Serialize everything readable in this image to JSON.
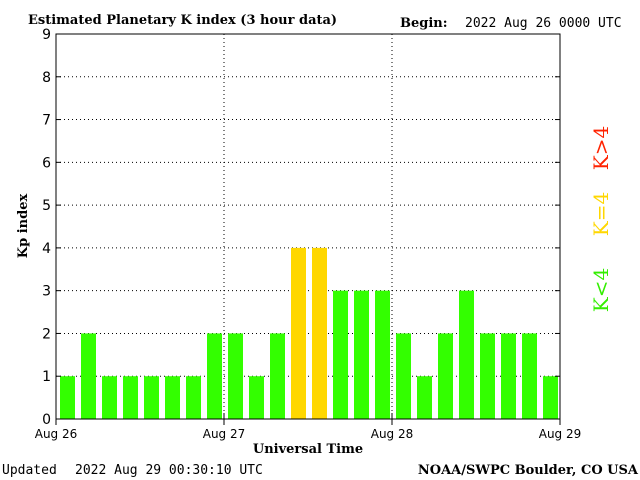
{
  "header": {
    "title": "Estimated Planetary K index (3 hour data)",
    "begin_label": "Begin:",
    "begin_value": "2022 Aug 26 0000 UTC"
  },
  "footer": {
    "updated_label": "Updated",
    "updated_value": "2022 Aug 29 00:30:10 UTC",
    "source": "NOAA/SWPC Boulder, CO USA"
  },
  "legend": {
    "items": [
      {
        "text": "K<4",
        "color": "#33ee00"
      },
      {
        "text": "K=4",
        "color": "#ffd700"
      },
      {
        "text": "K>4",
        "color": "#ff2200"
      }
    ]
  },
  "colors": {
    "below4": "#33ff00",
    "equal4": "#ffd700",
    "above4": "#ff2200"
  },
  "chart_data": {
    "type": "bar",
    "title": "Estimated Planetary K index (3 hour data)",
    "xlabel": "Universal Time",
    "ylabel": "Kp index",
    "ylim": [
      0,
      9
    ],
    "yticks": [
      "0",
      "1",
      "2",
      "3",
      "4",
      "5",
      "6",
      "7",
      "8",
      "9"
    ],
    "xticks": [
      "Aug 26",
      "Aug 27",
      "Aug 28",
      "Aug 29"
    ],
    "interval_hours": 3,
    "values": [
      1,
      2,
      1,
      1,
      1,
      1,
      1,
      2,
      2,
      1,
      2,
      4,
      4,
      3,
      3,
      3,
      2,
      1,
      2,
      3,
      2,
      2,
      2,
      1
    ],
    "grid": true,
    "legend": "right"
  }
}
